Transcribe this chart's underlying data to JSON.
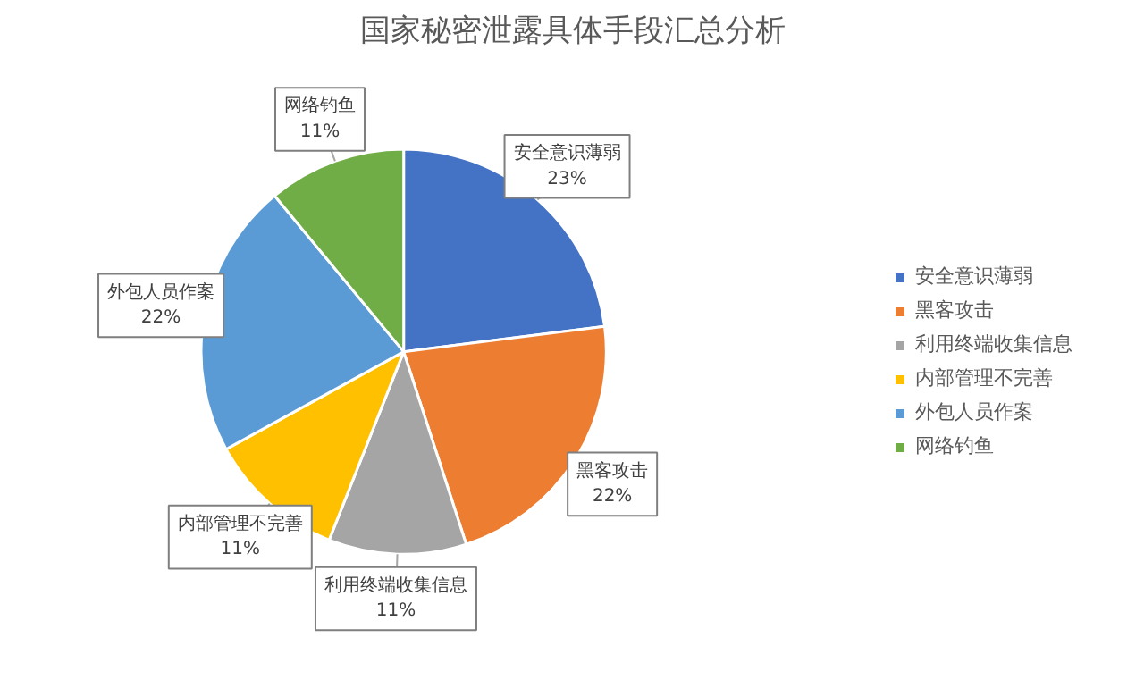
{
  "chart_data": {
    "type": "pie",
    "title": "国家秘密泄露具体手段汇总分析",
    "categories": [
      "安全意识薄弱",
      "黑客攻击",
      "利用终端收集信息",
      "内部管理不完善",
      "外包人员作案",
      "网络钓鱼"
    ],
    "values": [
      23,
      22,
      11,
      11,
      22,
      11
    ],
    "value_labels": [
      "23%",
      "22%",
      "11%",
      "11%",
      "22%",
      "11%"
    ],
    "colors": [
      "#4472c4",
      "#ed7d31",
      "#a5a5a5",
      "#ffc000",
      "#5b9bd5",
      "#70ad47"
    ],
    "legend": "right"
  }
}
